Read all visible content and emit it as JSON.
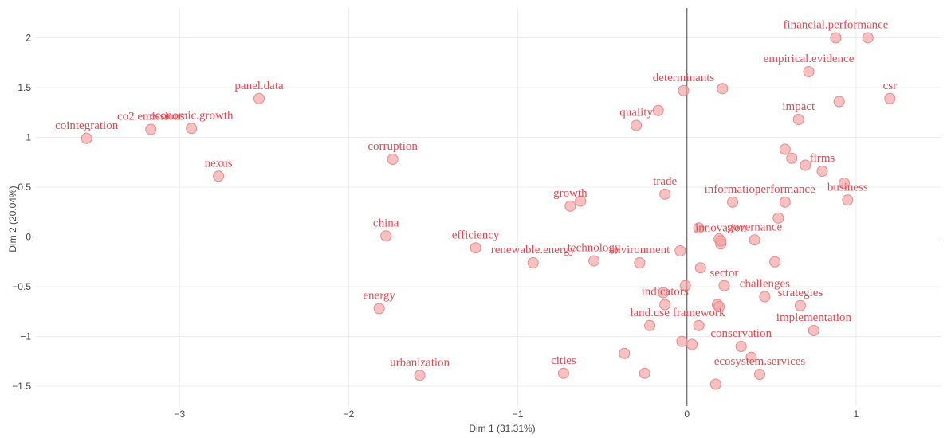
{
  "chart_data": {
    "type": "scatter",
    "xlabel": "Dim 1 (31.31%)",
    "ylabel": "Dim 2 (20.04%)",
    "xlim": [
      -3.85,
      1.5
    ],
    "ylim": [
      -1.7,
      2.3
    ],
    "xticks": [
      -3,
      -2,
      -1,
      0,
      1
    ],
    "yticks": [
      -1.5,
      -1,
      -0.5,
      0,
      0.5,
      1,
      1.5,
      2
    ],
    "xtick_labels": [
      "−3",
      "−2",
      "−1",
      "0",
      "1"
    ],
    "ytick_labels": [
      "−1.5",
      "−1",
      "−0.5",
      "0",
      "0.5",
      "1",
      "1.5",
      "2"
    ],
    "grid": true,
    "point_color": "#f4a7a7",
    "label_color": "#e8474f",
    "labeled_points": [
      {
        "label": "financial.performance",
        "x": 0.88,
        "y": 2.0
      },
      {
        "label": "csr",
        "x": 1.2,
        "y": 1.39
      },
      {
        "label": "empirical.evidence",
        "x": 0.72,
        "y": 1.66
      },
      {
        "label": "determinants",
        "x": -0.02,
        "y": 1.47
      },
      {
        "label": "impact",
        "x": 0.66,
        "y": 1.18
      },
      {
        "label": "quality",
        "x": -0.3,
        "y": 1.12
      },
      {
        "label": "panel.data",
        "x": -2.53,
        "y": 1.39
      },
      {
        "label": "economic.growth",
        "x": -2.93,
        "y": 1.09
      },
      {
        "label": "co2.emissions",
        "x": -3.17,
        "y": 1.08
      },
      {
        "label": "cointegration",
        "x": -3.55,
        "y": 0.99
      },
      {
        "label": "nexus",
        "x": -2.77,
        "y": 0.61
      },
      {
        "label": "corruption",
        "x": -1.74,
        "y": 0.78
      },
      {
        "label": "firms",
        "x": 0.8,
        "y": 0.66
      },
      {
        "label": "business",
        "x": 0.95,
        "y": 0.37
      },
      {
        "label": "performance",
        "x": 0.58,
        "y": 0.35
      },
      {
        "label": "information",
        "x": 0.27,
        "y": 0.35
      },
      {
        "label": "trade",
        "x": -0.13,
        "y": 0.43
      },
      {
        "label": "growth",
        "x": -0.69,
        "y": 0.31
      },
      {
        "label": "governance",
        "x": 0.4,
        "y": -0.03
      },
      {
        "label": "innovation",
        "x": 0.2,
        "y": -0.04
      },
      {
        "label": "china",
        "x": -1.78,
        "y": 0.01
      },
      {
        "label": "efficiency",
        "x": -1.25,
        "y": -0.11
      },
      {
        "label": "technology",
        "x": -0.55,
        "y": -0.24
      },
      {
        "label": "renewable.energy",
        "x": -0.91,
        "y": -0.26
      },
      {
        "label": "environment",
        "x": -0.28,
        "y": -0.26
      },
      {
        "label": "challenges",
        "x": 0.46,
        "y": -0.6
      },
      {
        "label": "sector",
        "x": 0.22,
        "y": -0.49
      },
      {
        "label": "strategies",
        "x": 0.67,
        "y": -0.69
      },
      {
        "label": "energy",
        "x": -1.82,
        "y": -0.72
      },
      {
        "label": "indicators",
        "x": -0.13,
        "y": -0.68
      },
      {
        "label": "implementation",
        "x": 0.75,
        "y": -0.94
      },
      {
        "label": "framework",
        "x": 0.07,
        "y": -0.89
      },
      {
        "label": "land.use",
        "x": -0.22,
        "y": -0.89
      },
      {
        "label": "conservation",
        "x": 0.32,
        "y": -1.1
      },
      {
        "label": "urbanization",
        "x": -1.58,
        "y": -1.39
      },
      {
        "label": "cities",
        "x": -0.73,
        "y": -1.37
      },
      {
        "label": "ecosystem.services",
        "x": 0.43,
        "y": -1.38
      }
    ],
    "unlabeled_points": [
      {
        "x": 1.07,
        "y": 2.0
      },
      {
        "x": 0.21,
        "y": 1.49
      },
      {
        "x": 0.9,
        "y": 1.36
      },
      {
        "x": -0.17,
        "y": 1.27
      },
      {
        "x": 0.58,
        "y": 0.88
      },
      {
        "x": 0.62,
        "y": 0.79
      },
      {
        "x": 0.7,
        "y": 0.72
      },
      {
        "x": 0.93,
        "y": 0.54
      },
      {
        "x": 0.54,
        "y": 0.19
      },
      {
        "x": -0.63,
        "y": 0.36
      },
      {
        "x": 0.07,
        "y": 0.09
      },
      {
        "x": 0.19,
        "y": -0.02
      },
      {
        "x": 0.2,
        "y": -0.07
      },
      {
        "x": -0.04,
        "y": -0.14
      },
      {
        "x": 0.52,
        "y": -0.25
      },
      {
        "x": 0.08,
        "y": -0.31
      },
      {
        "x": -0.01,
        "y": -0.49
      },
      {
        "x": -0.14,
        "y": -0.56
      },
      {
        "x": 0.18,
        "y": -0.68
      },
      {
        "x": 0.19,
        "y": -0.7
      },
      {
        "x": 0.03,
        "y": -1.08
      },
      {
        "x": -0.03,
        "y": -1.05
      },
      {
        "x": 0.38,
        "y": -1.21
      },
      {
        "x": -0.37,
        "y": -1.17
      },
      {
        "x": -0.25,
        "y": -1.37
      },
      {
        "x": 0.17,
        "y": -1.48
      }
    ]
  }
}
